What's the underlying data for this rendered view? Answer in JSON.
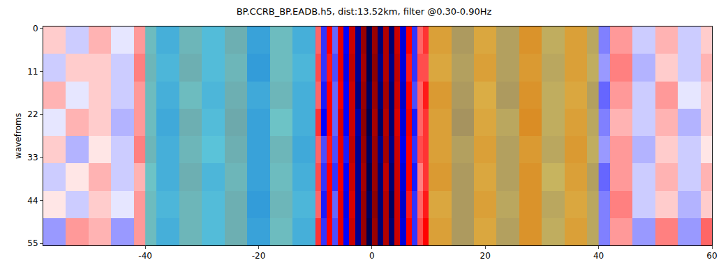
{
  "chart_data": {
    "type": "heatmap",
    "title": "BP.CCRB_BP.EADB.h5, dist:13.52km, filter @0.30-0.90Hz",
    "y_label": "wavefroms",
    "xlim": [
      -58,
      60
    ],
    "xticks": [
      -40,
      -20,
      0,
      20,
      40,
      60
    ],
    "ylim": [
      55.5,
      -0.5
    ],
    "yticks": [
      0,
      11,
      22,
      33,
      44,
      55
    ],
    "x_edges": [
      -58,
      -54,
      -50,
      -46,
      -42,
      -38,
      -34,
      -30,
      -26,
      -22,
      -18,
      -14,
      -10,
      -9,
      -8,
      -7,
      -6,
      -5,
      -4,
      -3,
      -2,
      -1,
      0,
      1,
      2,
      3,
      4,
      5,
      6,
      7,
      8,
      9,
      10,
      14,
      18,
      22,
      26,
      30,
      34,
      38,
      42,
      46,
      50,
      54,
      58,
      60
    ],
    "y_edges": [
      -0.5,
      6.5,
      13.5,
      20.5,
      27.5,
      34.5,
      41.5,
      48.5,
      55.5
    ],
    "zlim": [
      -1,
      1
    ],
    "z": [
      [
        0.1,
        -0.1,
        0.15,
        -0.05,
        0.2,
        -0.3,
        0.25,
        -0.2,
        0.3,
        -0.4,
        0.2,
        -0.3,
        0.3,
        -0.4,
        0.5,
        -0.3,
        0.6,
        -0.5,
        0.7,
        -0.8,
        0.9,
        -1.0,
        0.9,
        -0.9,
        0.8,
        -0.9,
        0.7,
        -0.6,
        0.5,
        -0.4,
        0.3,
        0.4,
        0.3,
        -0.35,
        0.25,
        -0.3,
        0.4,
        -0.2,
        0.3,
        -0.25,
        0.2,
        -0.1,
        0.15,
        -0.1,
        0.1
      ],
      [
        -0.1,
        0.1,
        0.1,
        -0.1,
        0.25,
        -0.25,
        0.3,
        -0.2,
        0.25,
        -0.45,
        0.2,
        -0.25,
        0.35,
        -0.4,
        0.45,
        -0.35,
        0.6,
        -0.55,
        0.75,
        -0.8,
        0.85,
        -1.0,
        0.95,
        -0.85,
        0.8,
        -0.85,
        0.75,
        -0.6,
        0.45,
        -0.4,
        0.35,
        0.35,
        0.25,
        -0.3,
        0.3,
        -0.3,
        0.35,
        -0.25,
        0.3,
        -0.2,
        0.25,
        -0.15,
        0.1,
        -0.1,
        0.15
      ],
      [
        0.15,
        -0.05,
        0.1,
        -0.1,
        0.2,
        -0.3,
        0.2,
        -0.25,
        0.3,
        -0.35,
        0.25,
        -0.3,
        0.3,
        -0.45,
        0.5,
        -0.3,
        0.55,
        -0.5,
        0.7,
        -0.85,
        0.9,
        -0.95,
        0.9,
        -0.9,
        0.85,
        -0.9,
        0.7,
        -0.65,
        0.5,
        -0.35,
        0.3,
        0.45,
        0.35,
        -0.35,
        0.2,
        -0.35,
        0.4,
        -0.2,
        0.25,
        -0.3,
        0.2,
        -0.1,
        0.2,
        -0.05,
        0.1
      ],
      [
        -0.05,
        0.15,
        0.1,
        -0.15,
        0.2,
        -0.35,
        0.3,
        -0.2,
        0.35,
        -0.4,
        0.15,
        -0.3,
        0.4,
        -0.5,
        0.5,
        -0.3,
        0.65,
        -0.5,
        0.7,
        -0.75,
        0.95,
        -1.0,
        0.85,
        -0.95,
        0.8,
        -0.9,
        0.65,
        -0.6,
        0.55,
        -0.45,
        0.3,
        0.4,
        0.3,
        -0.4,
        0.25,
        -0.25,
        0.45,
        -0.2,
        0.3,
        -0.25,
        0.15,
        -0.1,
        0.15,
        -0.15,
        0.1
      ],
      [
        0.1,
        -0.15,
        0.05,
        -0.1,
        0.25,
        -0.3,
        0.25,
        -0.15,
        0.3,
        -0.4,
        0.25,
        -0.35,
        0.3,
        -0.35,
        0.45,
        -0.35,
        0.6,
        -0.45,
        0.75,
        -0.8,
        0.9,
        -0.95,
        0.9,
        -0.85,
        0.85,
        -0.85,
        0.7,
        -0.55,
        0.5,
        -0.4,
        0.35,
        0.4,
        0.3,
        -0.3,
        0.3,
        -0.3,
        0.35,
        -0.25,
        0.35,
        -0.2,
        0.2,
        -0.15,
        0.1,
        -0.1,
        0.05
      ],
      [
        -0.1,
        0.05,
        0.15,
        -0.1,
        0.15,
        -0.3,
        0.3,
        -0.25,
        0.25,
        -0.4,
        0.2,
        -0.3,
        0.35,
        -0.4,
        0.5,
        -0.4,
        0.55,
        -0.5,
        0.7,
        -0.8,
        0.85,
        -1.0,
        0.9,
        -0.9,
        0.75,
        -0.9,
        0.7,
        -0.6,
        0.5,
        -0.45,
        0.25,
        0.4,
        0.35,
        -0.35,
        0.25,
        -0.3,
        0.4,
        -0.15,
        0.3,
        -0.3,
        0.2,
        -0.1,
        0.15,
        -0.1,
        0.15
      ],
      [
        0.05,
        -0.1,
        0.1,
        -0.05,
        0.2,
        -0.25,
        0.25,
        -0.2,
        0.3,
        -0.45,
        0.25,
        -0.25,
        0.3,
        -0.45,
        0.55,
        -0.3,
        0.6,
        -0.55,
        0.65,
        -0.8,
        0.9,
        -0.95,
        0.95,
        -0.9,
        0.8,
        -0.95,
        0.7,
        -0.65,
        0.45,
        -0.4,
        0.3,
        0.45,
        0.25,
        -0.35,
        0.3,
        -0.25,
        0.4,
        -0.25,
        0.25,
        -0.25,
        0.25,
        -0.1,
        0.1,
        -0.15,
        0.1
      ],
      [
        -0.2,
        0.2,
        0.15,
        -0.2,
        0.2,
        -0.3,
        0.25,
        -0.2,
        0.3,
        -0.4,
        0.2,
        -0.3,
        0.4,
        -0.4,
        0.5,
        -0.35,
        0.6,
        -0.5,
        0.7,
        -0.8,
        0.9,
        -1.0,
        0.9,
        -0.9,
        0.8,
        -0.9,
        0.7,
        -0.6,
        0.5,
        -0.4,
        0.35,
        0.5,
        0.3,
        -0.35,
        0.25,
        -0.3,
        0.4,
        -0.2,
        0.3,
        -0.25,
        0.2,
        -0.2,
        0.25,
        -0.2,
        0.3
      ]
    ],
    "spans": [
      {
        "x0": -40,
        "x1": -10,
        "color": "#3cc8cc"
      },
      {
        "x0": 10,
        "x1": 40,
        "color": "#cdb42a"
      }
    ],
    "grid": false
  }
}
